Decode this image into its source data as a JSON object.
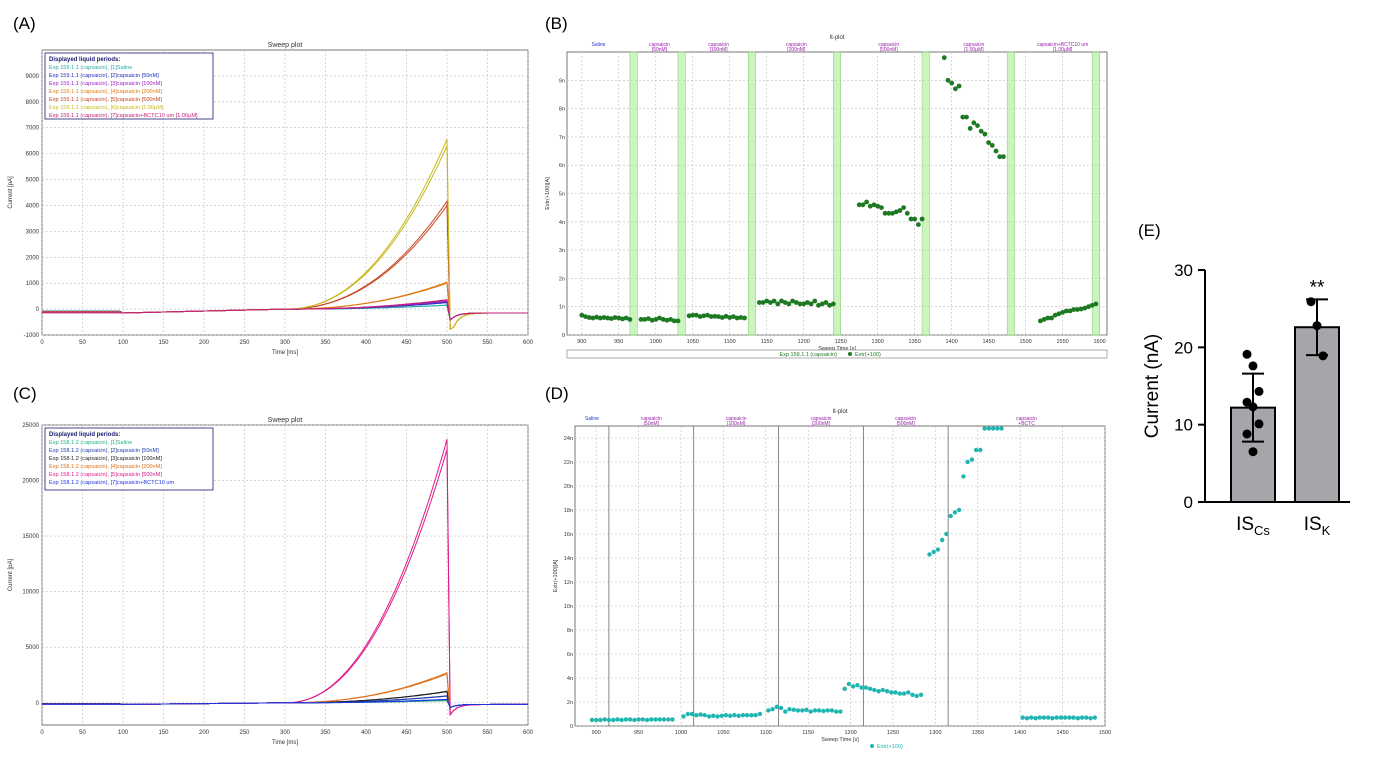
{
  "labels": {
    "A": "(A)",
    "B": "(B)",
    "C": "(C)",
    "D": "(D)",
    "E": "(E)"
  },
  "chart_data": [
    {
      "id": "A",
      "type": "line",
      "title": "Sweep plot",
      "xlabel": "Time [ms]",
      "ylabel": "Current [pA]",
      "xlim": [
        0,
        600
      ],
      "ylim": [
        -1000,
        10000
      ],
      "xticks": [
        "0",
        "50",
        "100",
        "150",
        "200",
        "250",
        "300",
        "350",
        "400",
        "450",
        "500",
        "550",
        "600"
      ],
      "yticks": [
        "-1000",
        "0",
        "1000",
        "2000",
        "3000",
        "4000",
        "5000",
        "6000",
        "7000",
        "8000",
        "9000"
      ],
      "legend_title": "Displayed liquid periods:",
      "series": [
        {
          "name": "Exp 159.1.1 (capsaicin), [1]Saline",
          "color": "#2aa8a8",
          "peak": 150
        },
        {
          "name": "Exp 159.1.1 (capsaicin), [2]capsaicin [50nM]",
          "color": "#1f2fb8",
          "peak": 250
        },
        {
          "name": "Exp 159.1.1 (capsaicin), [3]capsaicin [100nM]",
          "color": "#9a22c9",
          "peak": 300
        },
        {
          "name": "Exp 159.1.1 (capsaicin), [4]capsaicin [200nM]",
          "color": "#e07a10",
          "peak": 1000
        },
        {
          "name": "Exp 159.1.1 (capsaicin), [5]capsaicin [500nM]",
          "color": "#c8451e",
          "peak": 4000
        },
        {
          "name": "Exp 159.1.1 (capsaicin), [6]capsaicin [1.00µM]",
          "color": "#c9b81a",
          "peak": 6300
        },
        {
          "name": "Exp 159.1.1 (capsaicin), [7]capsaicin+BCTC10 um [1.00µM]",
          "color": "#c0207a",
          "peak": 350
        }
      ]
    },
    {
      "id": "B",
      "type": "scatter",
      "title": "It-plot",
      "xlabel": "Sweep Time [s]",
      "ylabel": "Extr(+100)[A]",
      "xlim": [
        880,
        1610
      ],
      "ylim": [
        0,
        10
      ],
      "xticks": [
        "900",
        "950",
        "1000",
        "1050",
        "1100",
        "1150",
        "1200",
        "1250",
        "1300",
        "1350",
        "1400",
        "1450",
        "1500",
        "1550",
        "1600"
      ],
      "yticks": [
        "0",
        "1n",
        "2n",
        "3n",
        "4n",
        "5n",
        "6n",
        "7n",
        "8n",
        "9n"
      ],
      "periods": [
        {
          "label": "Saline",
          "sub": "",
          "start": 880,
          "end": 965,
          "color": "#2233cc"
        },
        {
          "label": "capsaicin",
          "sub": "[50nM]",
          "start": 975,
          "end": 1035,
          "color": "#9922aa"
        },
        {
          "label": "capsaicin",
          "sub": "[100nM]",
          "start": 1040,
          "end": 1130,
          "color": "#9922aa"
        },
        {
          "label": "capsaicin",
          "sub": "[200nM]",
          "start": 1135,
          "end": 1245,
          "color": "#9922aa"
        },
        {
          "label": "capsaicin",
          "sub": "[500nM]",
          "start": 1260,
          "end": 1370,
          "color": "#9922aa"
        },
        {
          "label": "capsaicin",
          "sub": "[1.00µM]",
          "start": 1375,
          "end": 1485,
          "color": "#9922aa"
        },
        {
          "label": "capsaicin+BCTC10 um",
          "sub": "[1.00µM]",
          "start": 1490,
          "end": 1610,
          "color": "#9922aa"
        }
      ],
      "washouts": [
        [
          965,
          975
        ],
        [
          1030,
          1040
        ],
        [
          1125,
          1135
        ],
        [
          1240,
          1250
        ],
        [
          1360,
          1370
        ],
        [
          1475,
          1485
        ],
        [
          1590,
          1600
        ]
      ],
      "point_color": "#1e7a22",
      "legend": [
        "Exp 159.1.1 (capsaicin)",
        "Extr(+100)"
      ],
      "series": [
        {
          "x": [
            900,
            905,
            910,
            915,
            920,
            925,
            930,
            935,
            940,
            945,
            950,
            955,
            960,
            965
          ],
          "y": [
            0.7,
            0.65,
            0.62,
            0.6,
            0.63,
            0.6,
            0.62,
            0.6,
            0.58,
            0.62,
            0.6,
            0.57,
            0.6,
            0.55
          ]
        },
        {
          "x": [
            980,
            985,
            990,
            995,
            1000,
            1005,
            1010,
            1015,
            1020,
            1025,
            1030
          ],
          "y": [
            0.55,
            0.55,
            0.58,
            0.52,
            0.55,
            0.6,
            0.55,
            0.52,
            0.55,
            0.5,
            0.5
          ]
        },
        {
          "x": [
            1045,
            1050,
            1055,
            1060,
            1065,
            1070,
            1075,
            1080,
            1085,
            1090,
            1095,
            1100,
            1105,
            1110,
            1115,
            1120
          ],
          "y": [
            0.68,
            0.7,
            0.7,
            0.65,
            0.68,
            0.7,
            0.65,
            0.66,
            0.65,
            0.62,
            0.66,
            0.62,
            0.65,
            0.6,
            0.62,
            0.6
          ]
        },
        {
          "x": [
            1140,
            1145,
            1150,
            1155,
            1160,
            1165,
            1170,
            1175,
            1180,
            1185,
            1190,
            1195,
            1200,
            1205,
            1210,
            1215,
            1220,
            1225,
            1230,
            1235,
            1240
          ],
          "y": [
            1.15,
            1.15,
            1.2,
            1.15,
            1.2,
            1.1,
            1.2,
            1.15,
            1.1,
            1.2,
            1.15,
            1.1,
            1.1,
            1.15,
            1.1,
            1.2,
            1.05,
            1.1,
            1.15,
            1.05,
            1.1
          ]
        },
        {
          "x": [
            1275,
            1280,
            1285,
            1290,
            1295,
            1300,
            1305,
            1310,
            1315,
            1320,
            1325,
            1330,
            1335,
            1340,
            1345,
            1350,
            1355,
            1360
          ],
          "y": [
            4.6,
            4.6,
            4.7,
            4.55,
            4.6,
            4.55,
            4.5,
            4.3,
            4.3,
            4.3,
            4.35,
            4.4,
            4.5,
            4.3,
            4.1,
            4.1,
            3.9,
            4.1
          ]
        },
        {
          "x": [
            1390,
            1395,
            1400,
            1405,
            1410,
            1415,
            1420,
            1425,
            1430,
            1435,
            1440,
            1445,
            1450,
            1455,
            1460,
            1465,
            1470
          ],
          "y": [
            9.8,
            9.0,
            8.9,
            8.7,
            8.8,
            7.7,
            7.7,
            7.3,
            7.5,
            7.4,
            7.2,
            7.1,
            6.8,
            6.7,
            6.5,
            6.3,
            6.3
          ]
        },
        {
          "x": [
            1520,
            1525,
            1530,
            1535,
            1540,
            1545,
            1550,
            1555,
            1560,
            1565,
            1570,
            1575,
            1580,
            1585,
            1590,
            1595
          ],
          "y": [
            0.5,
            0.55,
            0.6,
            0.6,
            0.7,
            0.75,
            0.8,
            0.85,
            0.85,
            0.9,
            0.9,
            0.92,
            0.95,
            1.0,
            1.05,
            1.1
          ]
        }
      ]
    },
    {
      "id": "C",
      "type": "line",
      "title": "Sweep plot",
      "xlabel": "Time [ms]",
      "ylabel": "Current [pA]",
      "xlim": [
        0,
        600
      ],
      "ylim": [
        -2000,
        25000
      ],
      "xticks": [
        "0",
        "50",
        "100",
        "150",
        "200",
        "250",
        "300",
        "350",
        "400",
        "450",
        "500",
        "550",
        "600"
      ],
      "yticks": [
        "0",
        "5000",
        "10000",
        "15000",
        "20000",
        "25000"
      ],
      "legend_title": "Displayed liquid periods:",
      "series": [
        {
          "name": "Exp 158.1.2 (capsaicin), [1]Saline",
          "color": "#22b08a",
          "peak": 200
        },
        {
          "name": "Exp 158.1.2 (capsaicin), [2]capsaicin [50nM]",
          "color": "#1f3fa8",
          "peak": 600
        },
        {
          "name": "Exp 158.1.2 (capsaicin), [3]capsaicin [100nM]",
          "color": "#222222",
          "peak": 1000
        },
        {
          "name": "Exp 158.1.2 (capsaicin), [4]capsaicin [200nM]",
          "color": "#e0701a",
          "peak": 2600
        },
        {
          "name": "Exp 158.1.2 (capsaicin), [5]capsaicin [500nM]",
          "color": "#e01a8a",
          "peak": 22800
        },
        {
          "name": "Exp 158.1.2 (capsaicin), [7]capsaicin+BCTC10 um",
          "color": "#2233dd",
          "peak": 300
        }
      ]
    },
    {
      "id": "D",
      "type": "scatter",
      "title": "It-plot",
      "xlabel": "Sweep Time [s]",
      "ylabel": "Extr(+100)[A]",
      "xlim": [
        875,
        1500
      ],
      "ylim": [
        0,
        25
      ],
      "xticks": [
        "900",
        "950",
        "1000",
        "1050",
        "1100",
        "1150",
        "1200",
        "1250",
        "1300",
        "1350",
        "1400",
        "1450",
        "1500"
      ],
      "yticks": [
        "0",
        "2n",
        "4n",
        "6n",
        "8n",
        "10n",
        "12n",
        "14n",
        "16n",
        "18n",
        "20n",
        "22n",
        "24n"
      ],
      "periods": [
        {
          "label": "Saline",
          "sub": "",
          "start": 875,
          "end": 915,
          "color": "#2233cc"
        },
        {
          "label": "capsaicin",
          "sub": "[50nM]",
          "start": 915,
          "end": 1015,
          "color": "#9922aa"
        },
        {
          "label": "capsaicin",
          "sub": "[100nM]",
          "start": 1015,
          "end": 1115,
          "color": "#9922aa"
        },
        {
          "label": "capsaicin",
          "sub": "[200nM]",
          "start": 1115,
          "end": 1215,
          "color": "#9922aa"
        },
        {
          "label": "capsaicin",
          "sub": "[500nM]",
          "start": 1215,
          "end": 1315,
          "color": "#9922aa"
        },
        {
          "label": "capsaicin",
          "sub": "+BCTC",
          "start": 1315,
          "end": 1500,
          "color": "#9922aa"
        }
      ],
      "dividers": [
        915,
        1015,
        1115,
        1215,
        1315
      ],
      "point_color": "#1fb5b0",
      "legend": [
        "Extr(+100)"
      ],
      "series": [
        {
          "x": [
            895,
            900,
            905,
            910,
            915,
            920,
            925,
            930,
            935,
            940,
            945,
            950,
            955,
            960,
            965,
            970,
            975,
            980,
            985,
            990
          ],
          "y": [
            0.5,
            0.5,
            0.5,
            0.55,
            0.5,
            0.5,
            0.55,
            0.5,
            0.55,
            0.55,
            0.5,
            0.55,
            0.55,
            0.5,
            0.55,
            0.55,
            0.55,
            0.55,
            0.55,
            0.55
          ]
        },
        {
          "x": [
            1003,
            1008,
            1013,
            1018,
            1023,
            1028,
            1033,
            1038,
            1043,
            1048,
            1053,
            1058,
            1063,
            1068,
            1073,
            1078,
            1083,
            1088,
            1093
          ],
          "y": [
            0.8,
            1.0,
            1.0,
            0.9,
            0.95,
            0.9,
            0.8,
            0.85,
            0.8,
            0.85,
            0.9,
            0.85,
            0.9,
            0.85,
            0.9,
            0.9,
            0.9,
            0.9,
            1.0
          ]
        },
        {
          "x": [
            1103,
            1108,
            1113,
            1118,
            1123,
            1128,
            1133,
            1138,
            1143,
            1148,
            1153,
            1158,
            1163,
            1168,
            1173,
            1178,
            1183,
            1188
          ],
          "y": [
            1.3,
            1.4,
            1.6,
            1.5,
            1.2,
            1.4,
            1.35,
            1.3,
            1.3,
            1.35,
            1.2,
            1.3,
            1.3,
            1.25,
            1.3,
            1.3,
            1.2,
            1.2
          ]
        },
        {
          "x": [
            1193,
            1198,
            1203,
            1208,
            1213,
            1218,
            1223,
            1228,
            1233,
            1238,
            1243,
            1248,
            1253,
            1258,
            1263,
            1268,
            1273,
            1278,
            1283
          ],
          "y": [
            3.1,
            3.5,
            3.3,
            3.4,
            3.2,
            3.2,
            3.1,
            3.0,
            2.9,
            3.0,
            2.9,
            2.8,
            2.8,
            2.7,
            2.7,
            2.8,
            2.6,
            2.5,
            2.6
          ]
        },
        {
          "x": [
            1293,
            1298,
            1303,
            1308,
            1313,
            1318,
            1323,
            1328,
            1333,
            1338,
            1343,
            1348,
            1353,
            1358,
            1363,
            1368,
            1373,
            1378
          ],
          "y": [
            14.3,
            14.5,
            14.7,
            15.5,
            16.0,
            17.5,
            17.8,
            18.0,
            20.8,
            22.0,
            22.2,
            23.0,
            23.0,
            24.8,
            24.8,
            24.8,
            24.8,
            24.8
          ]
        },
        {
          "x": [
            1403,
            1408,
            1413,
            1418,
            1423,
            1428,
            1433,
            1438,
            1443,
            1448,
            1453,
            1458,
            1463,
            1468,
            1473,
            1478,
            1483,
            1488
          ],
          "y": [
            0.7,
            0.65,
            0.7,
            0.65,
            0.7,
            0.7,
            0.7,
            0.65,
            0.7,
            0.7,
            0.7,
            0.7,
            0.7,
            0.65,
            0.7,
            0.7,
            0.65,
            0.7
          ]
        }
      ]
    },
    {
      "id": "E",
      "type": "bar",
      "ylabel": "Current (nA)",
      "ylim": [
        0,
        30
      ],
      "yticks": [
        "0",
        "10",
        "20",
        "30"
      ],
      "categories": [
        {
          "base": "IS",
          "sub": "Cs"
        },
        {
          "base": "IS",
          "sub": "K"
        }
      ],
      "values": [
        12.2,
        22.6
      ],
      "sd": [
        4.4,
        3.6
      ],
      "points": [
        [
          19.1,
          17.6,
          14.3,
          12.9,
          12.3,
          10.1,
          8.8,
          6.5
        ],
        [
          25.9,
          22.8,
          18.9
        ]
      ],
      "bar_color": "#a6a6aa",
      "annotation": "**"
    }
  ]
}
